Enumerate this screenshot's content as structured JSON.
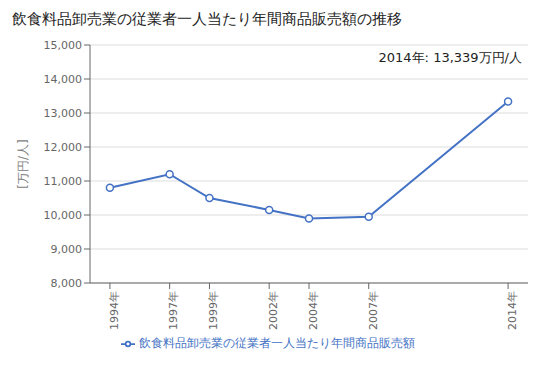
{
  "chart_data": {
    "type": "line",
    "title": "飲食料品卸売業の従業者一人当たり年間商品販売額の推移",
    "y_label": "[万円/人]",
    "annotation": "2014年: 13,339万円/人",
    "x": [
      1994,
      1997,
      1999,
      2002,
      2004,
      2007,
      2014
    ],
    "series": [
      {
        "name": "飲食料品卸売業の従業者一人当たり年間商品販売額",
        "color": "#4472C4",
        "marker": "circle",
        "values": [
          10800,
          11200,
          10500,
          10150,
          9900,
          9950,
          13339
        ]
      }
    ],
    "xlim": [
      1993,
      2015
    ],
    "xticks": [
      {
        "value": 1994,
        "label": "1994年"
      },
      {
        "value": 1997,
        "label": "1997年"
      },
      {
        "value": 1999,
        "label": "1999年"
      },
      {
        "value": 2002,
        "label": "2002年"
      },
      {
        "value": 2004,
        "label": "2004年"
      },
      {
        "value": 2007,
        "label": "2007年"
      },
      {
        "value": 2014,
        "label": "2014年"
      }
    ],
    "ylim": [
      8000,
      15000
    ],
    "yticks": [
      {
        "value": 8000,
        "label": "8,000"
      },
      {
        "value": 9000,
        "label": "9,000"
      },
      {
        "value": 10000,
        "label": "10,000"
      },
      {
        "value": 11000,
        "label": "11,000"
      },
      {
        "value": 12000,
        "label": "12,000"
      },
      {
        "value": 13000,
        "label": "13,000"
      },
      {
        "value": 14000,
        "label": "14,000"
      },
      {
        "value": 15000,
        "label": "15,000"
      }
    ],
    "grid": true,
    "legend": "bottom"
  }
}
